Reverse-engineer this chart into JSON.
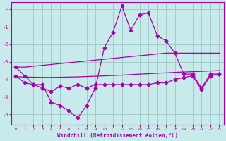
{
  "xlabel": "Windchill (Refroidissement éolien,°C)",
  "bg_color": "#c8eaea",
  "grid_color": "#a0cccc",
  "line_color": "#aa00aa",
  "x": [
    0,
    1,
    2,
    3,
    4,
    5,
    6,
    7,
    8,
    9,
    10,
    11,
    12,
    13,
    14,
    15,
    16,
    17,
    18,
    19,
    20,
    21,
    22,
    23
  ],
  "y_upper": [
    -3.3,
    -3.8,
    -4.3,
    -4.3,
    -5.3,
    -5.5,
    -5.8,
    -6.2,
    -5.5,
    -4.5,
    -2.2,
    -1.3,
    0.2,
    -1.2,
    -0.3,
    -0.2,
    -1.5,
    -1.8,
    -2.5,
    -3.7,
    -3.7,
    -4.5,
    -3.7,
    -3.7
  ],
  "y_lower": [
    -3.8,
    -4.2,
    -4.3,
    -4.5,
    -4.7,
    -4.4,
    -4.5,
    -4.3,
    -4.5,
    -4.3,
    -4.3,
    -4.3,
    -4.3,
    -4.3,
    -4.3,
    -4.3,
    -4.2,
    -4.2,
    -4.0,
    -3.9,
    -3.8,
    -4.6,
    -3.8,
    -3.7
  ],
  "y_trend1": [
    -3.3,
    -3.3,
    -3.25,
    -3.2,
    -3.15,
    -3.1,
    -3.05,
    -3.0,
    -2.95,
    -2.9,
    -2.85,
    -2.8,
    -2.75,
    -2.7,
    -2.65,
    -2.6,
    -2.55,
    -2.5,
    -2.5,
    -2.5,
    -2.5,
    -2.5,
    -2.5,
    -2.5
  ],
  "y_trend2": [
    -3.85,
    -3.87,
    -3.88,
    -3.89,
    -3.89,
    -3.88,
    -3.87,
    -3.86,
    -3.84,
    -3.82,
    -3.8,
    -3.78,
    -3.76,
    -3.73,
    -3.7,
    -3.68,
    -3.65,
    -3.63,
    -3.6,
    -3.58,
    -3.56,
    -3.54,
    -3.52,
    -3.5
  ],
  "xlim": [
    -0.5,
    23.5
  ],
  "ylim": [
    -6.6,
    0.4
  ],
  "yticks": [
    0,
    -1,
    -2,
    -3,
    -4,
    -5,
    -6
  ],
  "xticks": [
    0,
    1,
    2,
    3,
    4,
    5,
    6,
    7,
    8,
    9,
    10,
    11,
    12,
    13,
    14,
    15,
    16,
    17,
    18,
    19,
    20,
    21,
    22,
    23
  ]
}
